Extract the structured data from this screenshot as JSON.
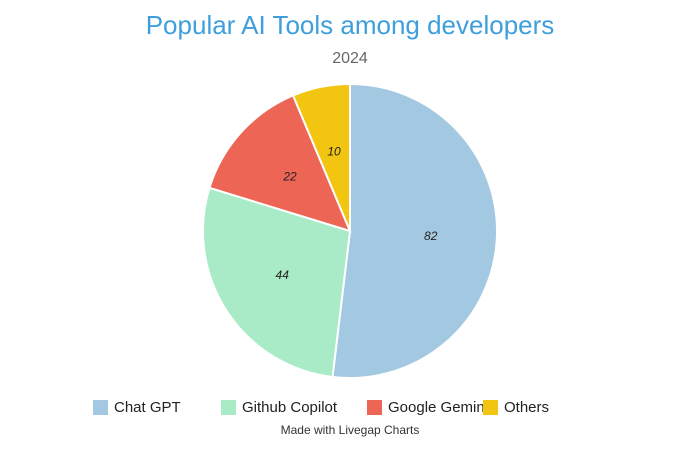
{
  "chart_data": {
    "type": "pie",
    "title": "Popular AI Tools among developers",
    "subtitle": "2024",
    "categories": [
      "Chat GPT",
      "Github Copilot",
      "Google Gemini",
      "Others"
    ],
    "values": [
      82,
      44,
      22,
      10
    ],
    "colors": [
      "#a3c8e2",
      "#a8ebc6",
      "#ed6555",
      "#f2c511"
    ],
    "legend_position": "bottom",
    "show_data_labels": true
  },
  "footer": {
    "credit": "Made with Livegap Charts"
  }
}
